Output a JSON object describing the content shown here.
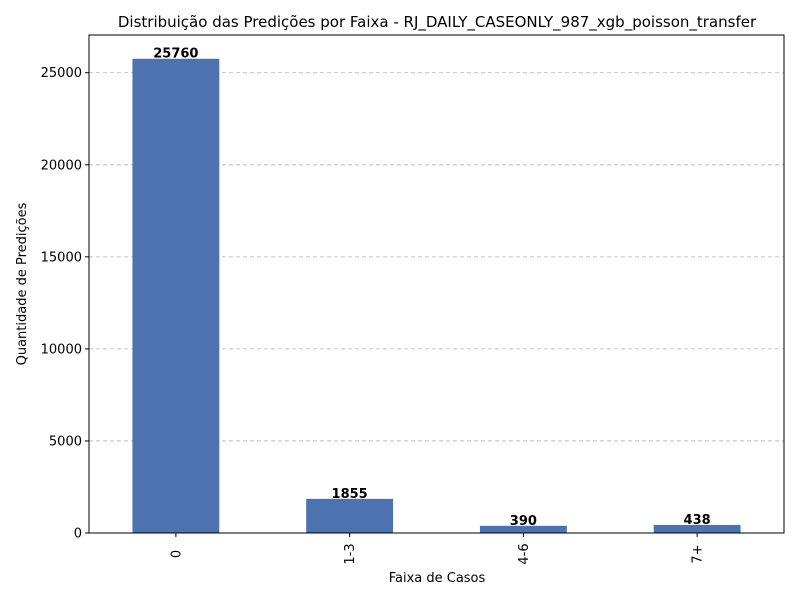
{
  "chart_data": {
    "type": "bar",
    "title": "Distribuição das Predições por Faixa - RJ_DAILY_CASEONLY_987_xgb_poisson_transfer",
    "xlabel": "Faixa de Casos",
    "ylabel": "Quantidade de Predições",
    "categories": [
      "0",
      "1-3",
      "4-6",
      "7+"
    ],
    "values": [
      25760,
      1855,
      390,
      438
    ],
    "ylim": [
      0,
      27050
    ],
    "yticks": [
      0,
      5000,
      10000,
      15000,
      20000,
      25000
    ],
    "grid": "y-dashed",
    "bar_color": "#4c72b0"
  }
}
